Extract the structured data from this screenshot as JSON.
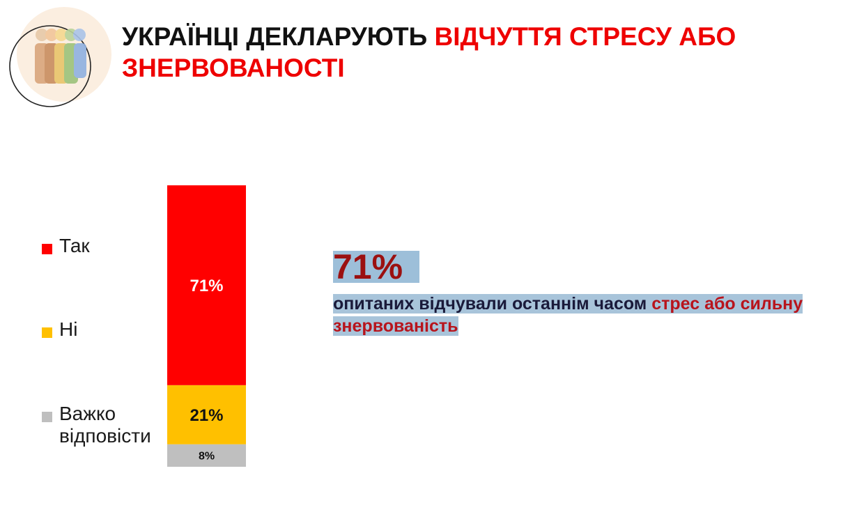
{
  "header": {
    "title_main": "УКРАЇНЦІ ДЕКЛАРУЮТЬ ",
    "title_accent": "ВІДЧУТТЯ СТРЕСУ АБО ЗНЕРВОВАНОСТІ"
  },
  "logo": {
    "icon": "people-group-icon"
  },
  "stat": {
    "value": "71%",
    "text_main": "опитаних відчували останнім часом ",
    "text_highlight": "стрес або сильну знервованість"
  },
  "chart_data": {
    "type": "bar",
    "stacked": true,
    "categories": [
      ""
    ],
    "series": [
      {
        "name": "Так",
        "values": [
          71
        ],
        "label": "71%",
        "color": "#ff0000"
      },
      {
        "name": "Ні",
        "values": [
          21
        ],
        "label": "21%",
        "color": "#ffc000"
      },
      {
        "name": "Важко відповісти",
        "values": [
          8
        ],
        "label": "8%",
        "color": "#bfbfbf"
      }
    ],
    "ylim": [
      0,
      100
    ],
    "legend": "left",
    "grid": false,
    "title": "",
    "xlabel": "",
    "ylabel": ""
  }
}
